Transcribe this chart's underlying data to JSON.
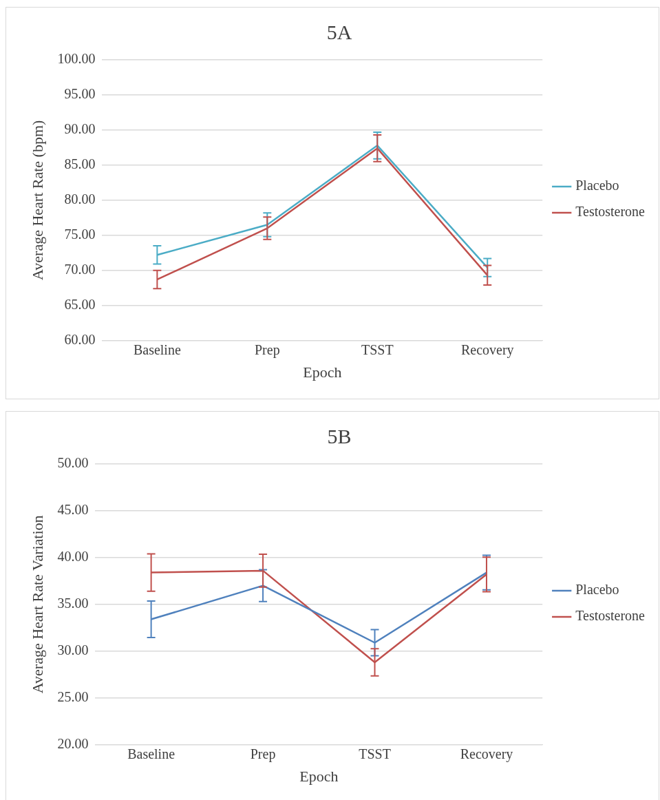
{
  "chart_data": [
    {
      "type": "line",
      "title": "5A",
      "xlabel": "Epoch",
      "ylabel": "Average Heart Rate (bpm)",
      "categories": [
        "Baseline",
        "Prep",
        "TSST",
        "Recovery"
      ],
      "series": [
        {
          "name": "Placebo",
          "color": "#4bacc6",
          "values": [
            72.2,
            76.5,
            87.8,
            70.4
          ],
          "errors": [
            1.3,
            1.7,
            1.9,
            1.3
          ]
        },
        {
          "name": "Testosterone",
          "color": "#c0504d",
          "values": [
            68.7,
            76.0,
            87.4,
            69.3
          ],
          "errors": [
            1.3,
            1.6,
            1.9,
            1.4
          ]
        }
      ],
      "ylim": [
        60,
        100
      ],
      "yticks": [
        {
          "value": 60,
          "label": "60.00"
        },
        {
          "value": 65,
          "label": "65.00"
        },
        {
          "value": 70,
          "label": "70.00"
        },
        {
          "value": 75,
          "label": "75.00"
        },
        {
          "value": 80,
          "label": "80.00"
        },
        {
          "value": 85,
          "label": "85.00"
        },
        {
          "value": 90,
          "label": "90.00"
        },
        {
          "value": 95,
          "label": "95.00"
        },
        {
          "value": 100,
          "label": "100.00"
        }
      ],
      "grid": "y",
      "legend": "right",
      "marker": "none",
      "line_style": "solid"
    },
    {
      "type": "line",
      "title": "5B",
      "xlabel": "Epoch",
      "ylabel": "Average Heart Rate Variation",
      "categories": [
        "Baseline",
        "Prep",
        "TSST",
        "Recovery"
      ],
      "series": [
        {
          "name": "Placebo",
          "color": "#4f81bd",
          "values": [
            33.4,
            37.0,
            30.9,
            38.4
          ],
          "errors": [
            1.95,
            1.7,
            1.4,
            1.85
          ]
        },
        {
          "name": "Testosterone",
          "color": "#c0504d",
          "values": [
            38.4,
            38.6,
            28.8,
            38.2
          ],
          "errors": [
            2.0,
            1.75,
            1.45,
            1.85
          ]
        }
      ],
      "ylim": [
        20,
        50
      ],
      "yticks": [
        {
          "value": 20,
          "label": "20.00"
        },
        {
          "value": 25,
          "label": "25.00"
        },
        {
          "value": 30,
          "label": "30.00"
        },
        {
          "value": 35,
          "label": "35.00"
        },
        {
          "value": 40,
          "label": "40.00"
        },
        {
          "value": 45,
          "label": "45.00"
        },
        {
          "value": 50,
          "label": "50.00"
        }
      ],
      "grid": "y",
      "legend": "right",
      "marker": "none",
      "line_style": "solid"
    }
  ]
}
